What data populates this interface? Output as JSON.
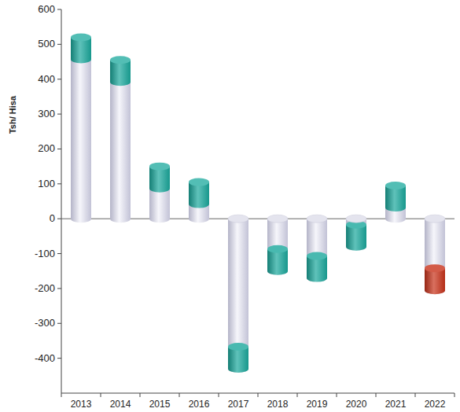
{
  "chart_data": {
    "type": "bar",
    "y_label": "Tsh/ Hisa",
    "categories": [
      "2013",
      "2014",
      "2015",
      "2016",
      "2017",
      "2018",
      "2019",
      "2020",
      "2021",
      "2022"
    ],
    "values": [
      520,
      455,
      150,
      105,
      -430,
      -150,
      -170,
      -80,
      95,
      -205
    ],
    "colors": [
      "#1aa89c",
      "#1aa89c",
      "#1aa89c",
      "#1aa89c",
      "#1aa89c",
      "#1aa89c",
      "#1aa89c",
      "#1aa89c",
      "#1aa89c",
      "#c8321a"
    ],
    "ylim": [
      -500,
      600
    ],
    "yticks": [
      -400,
      -300,
      -200,
      -100,
      0,
      100,
      200,
      300,
      400,
      500,
      600
    ],
    "grid": false
  }
}
